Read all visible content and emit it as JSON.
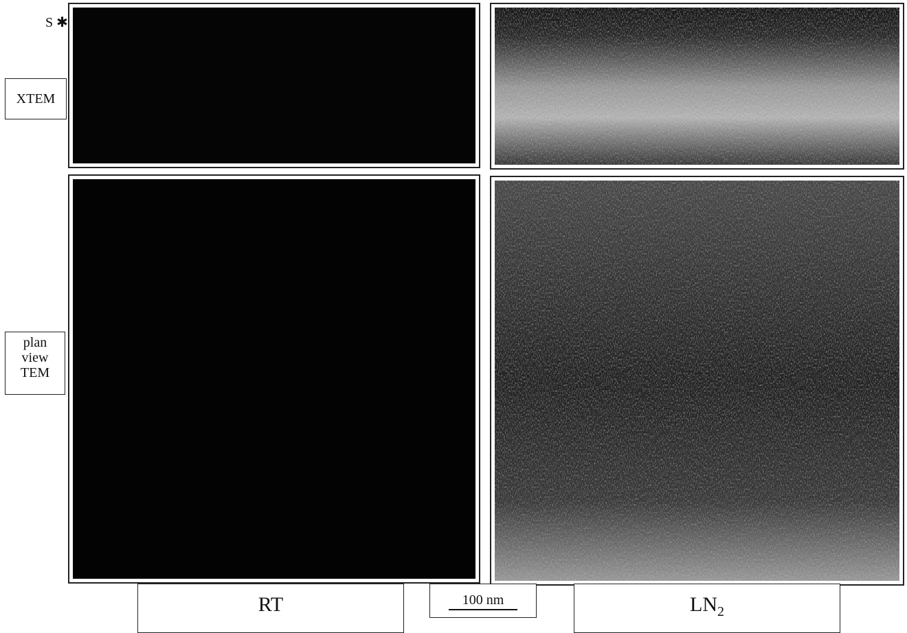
{
  "labels": {
    "surface_marker": "S",
    "xtem": "XTEM",
    "plan_view": [
      "plan",
      "view",
      "TEM"
    ]
  },
  "columns": {
    "rt": "RT",
    "scale_bar": "100 nm",
    "ln2": {
      "main": "LN",
      "sub": "2"
    }
  }
}
